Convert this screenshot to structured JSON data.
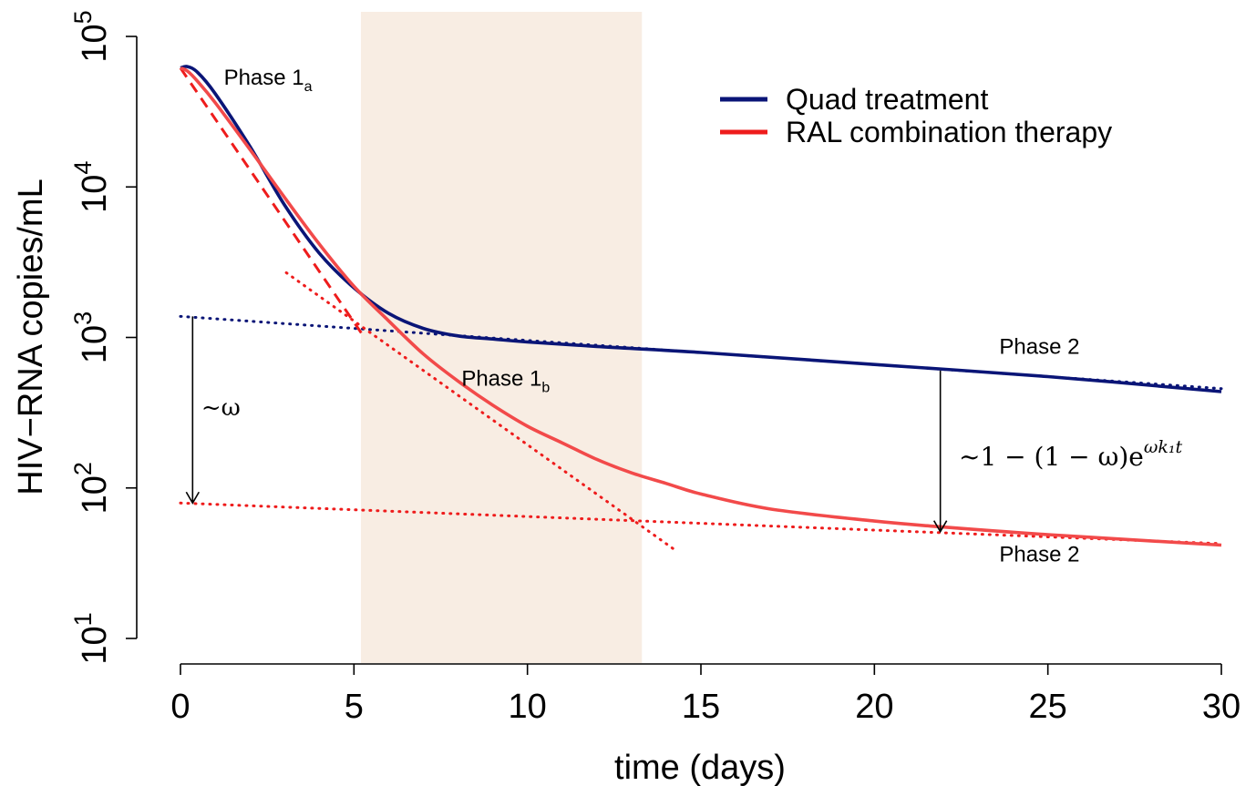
{
  "chart_data": {
    "type": "line",
    "xlabel": "time (days)",
    "ylabel": "HIV−RNA copies/mL",
    "xlim": [
      0,
      30
    ],
    "ylim_log10": [
      1,
      5
    ],
    "y_scale": "log10",
    "x_ticks": [
      0,
      5,
      10,
      15,
      20,
      25,
      30
    ],
    "x_tick_labels": [
      "0",
      "5",
      "10",
      "15",
      "20",
      "25",
      "30"
    ],
    "y_ticks_log10": [
      1,
      2,
      3,
      4,
      5
    ],
    "y_tick_base": "10",
    "y_tick_exponents": [
      "1",
      "2",
      "3",
      "4",
      "5"
    ],
    "shaded_region": {
      "x": [
        5.2,
        13.3
      ],
      "color": "#f8ede3"
    },
    "colors": {
      "quad": "#0a1577",
      "ral": "#f24a4a",
      "ral_dark": "#ee1c1c"
    },
    "series": [
      {
        "name": "Quad treatment",
        "color": "#0a1577",
        "x": [
          0,
          0.2,
          0.5,
          1,
          2,
          3,
          4,
          5,
          6,
          7,
          8,
          9,
          10,
          12,
          15,
          20,
          25,
          30
        ],
        "logy": [
          4.79,
          4.8,
          4.76,
          4.62,
          4.27,
          3.88,
          3.56,
          3.33,
          3.16,
          3.06,
          3.01,
          2.99,
          2.97,
          2.94,
          2.9,
          2.82,
          2.74,
          2.64
        ]
      },
      {
        "name": "RAL combination therapy",
        "color": "#f24a4a",
        "x": [
          0,
          0.2,
          0.5,
          1,
          2,
          3,
          4,
          5,
          6,
          7,
          8,
          9,
          10,
          11,
          12,
          13,
          14,
          15,
          17,
          20,
          22,
          25,
          30
        ],
        "logy": [
          4.79,
          4.77,
          4.7,
          4.56,
          4.25,
          3.93,
          3.62,
          3.34,
          3.11,
          2.89,
          2.71,
          2.55,
          2.41,
          2.3,
          2.19,
          2.1,
          2.03,
          1.96,
          1.86,
          1.78,
          1.74,
          1.69,
          1.62
        ]
      }
    ],
    "guide_lines": [
      {
        "label": "quad phase-2 asymptote",
        "color": "#0a1577",
        "style": "dotted",
        "x": [
          0,
          30
        ],
        "logy": [
          3.14,
          2.66
        ]
      },
      {
        "label": "ral phase-2 asymptote",
        "color": "#ee1c1c",
        "style": "dotted",
        "x": [
          0,
          30
        ],
        "logy": [
          1.9,
          1.63
        ]
      },
      {
        "label": "ral phase-1b tangent",
        "color": "#ee1c1c",
        "style": "dotted",
        "x": [
          3.05,
          14.3
        ],
        "logy": [
          3.43,
          1.58
        ]
      },
      {
        "label": "ral phase-1a tangent",
        "color": "#ee1c1c",
        "style": "dashed",
        "x": [
          0,
          5.3
        ],
        "logy": [
          4.79,
          3.0
        ]
      }
    ],
    "annotations": [
      {
        "id": "omega",
        "text": "~ω",
        "arrow_x": 0.35,
        "arrow_logy": [
          3.14,
          1.9
        ],
        "text_x": 0.6,
        "text_logy": 2.53
      },
      {
        "id": "phase2_gap",
        "text_main": "~1 − (1 − ω)e",
        "text_sup": "ωk₁t",
        "arrow_x": 21.9,
        "arrow_logy": [
          2.78,
          1.71
        ]
      }
    ],
    "phase_labels": [
      {
        "text": "Phase 1",
        "sub": "a",
        "x": 1.25,
        "logy": 4.68
      },
      {
        "text": "Phase 1",
        "sub": "b",
        "x": 8.1,
        "logy": 2.68
      },
      {
        "text": "Phase 2",
        "sub": "",
        "x": 23.6,
        "logy": 2.89
      },
      {
        "text": "Phase 2",
        "sub": "",
        "x": 23.6,
        "logy": 1.51
      }
    ],
    "legend": {
      "position": "top-right",
      "entries": [
        {
          "label": "Quad treatment",
          "color": "#0a1577"
        },
        {
          "label": "RAL combination therapy",
          "color": "#ee1c1c"
        }
      ]
    }
  }
}
